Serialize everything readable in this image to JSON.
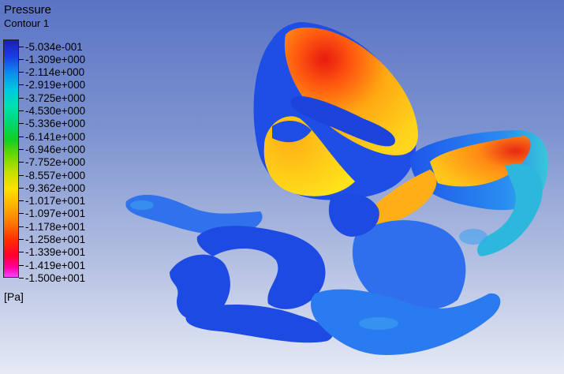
{
  "legend": {
    "title": "Pressure",
    "subtitle": "Contour 1",
    "unit": "[Pa]",
    "ticks": [
      "-5.034e-001",
      "-1.309e+000",
      "-2.114e+000",
      "-2.919e+000",
      "-3.725e+000",
      "-4.530e+000",
      "-5.336e+000",
      "-6.141e+000",
      "-6.946e+000",
      "-7.752e+000",
      "-8.557e+000",
      "-9.362e+000",
      "-1.017e+001",
      "-1.097e+001",
      "-1.178e+001",
      "-1.258e+001",
      "-1.339e+001",
      "-1.419e+001",
      "-1.500e+001"
    ]
  },
  "colors": {
    "background_top": "#5a74c4",
    "background_bottom": "#e6eaf5",
    "vessel_blue": "#1f4fe6",
    "vessel_light": "#3a8cf0",
    "surface_red": "#ee2a10",
    "surface_orange": "#ff9a10",
    "surface_yellow": "#ffd21a"
  }
}
